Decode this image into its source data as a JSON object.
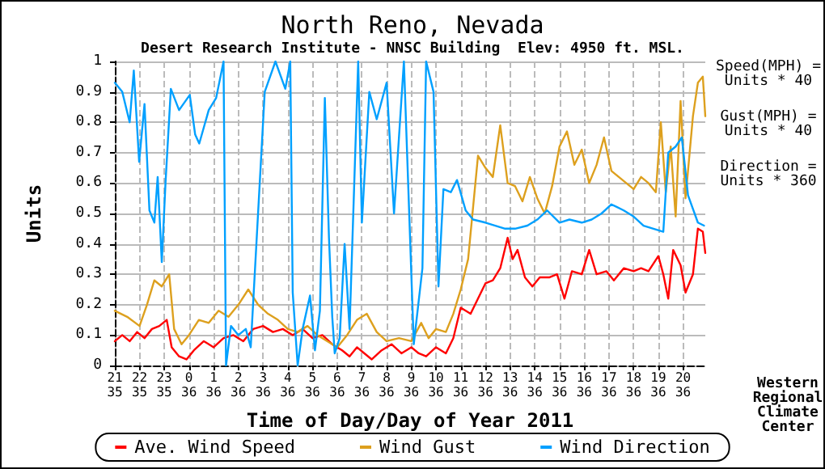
{
  "chart_data": {
    "type": "line",
    "title": "North Reno, Nevada",
    "subtitle": "Desert Research Institute - NNSC Building  Elev: 4950 ft. MSL.",
    "xlabel": "Time of Day/Day of Year 2011",
    "ylabel": "Units",
    "annotations": [
      "Speed(MPH) =\nUnits * 40",
      "Gust(MPH) =\nUnits * 40",
      "Direction =\nUnits * 360",
      "Western\nRegional\nClimate\nCenter"
    ],
    "xlim": [
      "2011-02-04T21:00",
      "2011-02-05T20:54"
    ],
    "xticks": [
      {
        "value": "2011-02-04T21:00",
        "label": "21\n35"
      },
      {
        "value": "2011-02-04T22:00",
        "label": "22\n35"
      },
      {
        "value": "2011-02-04T23:00",
        "label": "23\n35"
      },
      {
        "value": "2011-02-05T00:00",
        "label": "0\n36"
      },
      {
        "value": "2011-02-05T01:00",
        "label": "1\n36"
      },
      {
        "value": "2011-02-05T02:00",
        "label": "2\n36"
      },
      {
        "value": "2011-02-05T03:00",
        "label": "3\n36"
      },
      {
        "value": "2011-02-05T04:00",
        "label": "4\n36"
      },
      {
        "value": "2011-02-05T05:00",
        "label": "5\n36"
      },
      {
        "value": "2011-02-05T06:00",
        "label": "6\n36"
      },
      {
        "value": "2011-02-05T07:00",
        "label": "7\n36"
      },
      {
        "value": "2011-02-05T08:00",
        "label": "8\n36"
      },
      {
        "value": "2011-02-05T09:00",
        "label": "9\n36"
      },
      {
        "value": "2011-02-05T10:00",
        "label": "10\n36"
      },
      {
        "value": "2011-02-05T11:00",
        "label": "11\n36"
      },
      {
        "value": "2011-02-05T12:00",
        "label": "12\n36"
      },
      {
        "value": "2011-02-05T13:00",
        "label": "13\n36"
      },
      {
        "value": "2011-02-05T14:00",
        "label": "14\n36"
      },
      {
        "value": "2011-02-05T15:00",
        "label": "15\n36"
      },
      {
        "value": "2011-02-05T16:00",
        "label": "16\n36"
      },
      {
        "value": "2011-02-05T17:00",
        "label": "17\n36"
      },
      {
        "value": "2011-02-05T18:00",
        "label": "18\n36"
      },
      {
        "value": "2011-02-05T19:00",
        "label": "19\n36"
      },
      {
        "value": "2011-02-05T20:00",
        "label": "20\n36"
      }
    ],
    "ylim": [
      0,
      1
    ],
    "yticks": [
      0,
      0.1,
      0.2,
      0.3,
      0.4,
      0.5,
      0.6,
      0.7,
      0.8,
      0.9,
      1
    ],
    "grid": true,
    "legend": "bottom",
    "marker": "none",
    "line_style": "solid",
    "series": [
      {
        "name": "Ave. Wind Speed",
        "color": "#ff0000",
        "x": [
          "2011-02-04T21:00",
          "2011-02-04T21:18",
          "2011-02-04T21:36",
          "2011-02-04T21:54",
          "2011-02-04T22:12",
          "2011-02-04T22:30",
          "2011-02-04T22:48",
          "2011-02-04T23:06",
          "2011-02-04T23:18",
          "2011-02-04T23:36",
          "2011-02-04T23:54",
          "2011-02-05T00:12",
          "2011-02-05T00:36",
          "2011-02-05T01:00",
          "2011-02-05T01:24",
          "2011-02-05T01:48",
          "2011-02-05T02:12",
          "2011-02-05T02:36",
          "2011-02-05T03:00",
          "2011-02-05T03:24",
          "2011-02-05T03:48",
          "2011-02-05T04:12",
          "2011-02-05T04:36",
          "2011-02-05T05:00",
          "2011-02-05T05:24",
          "2011-02-05T05:48",
          "2011-02-05T06:12",
          "2011-02-05T06:30",
          "2011-02-05T06:48",
          "2011-02-05T07:06",
          "2011-02-05T07:24",
          "2011-02-05T07:48",
          "2011-02-05T08:12",
          "2011-02-05T08:36",
          "2011-02-05T09:00",
          "2011-02-05T09:18",
          "2011-02-05T09:36",
          "2011-02-05T10:00",
          "2011-02-05T10:24",
          "2011-02-05T10:42",
          "2011-02-05T11:00",
          "2011-02-05T11:24",
          "2011-02-05T11:42",
          "2011-02-05T12:00",
          "2011-02-05T12:18",
          "2011-02-05T12:36",
          "2011-02-05T12:54",
          "2011-02-05T13:06",
          "2011-02-05T13:18",
          "2011-02-05T13:36",
          "2011-02-05T13:54",
          "2011-02-05T14:12",
          "2011-02-05T14:36",
          "2011-02-05T14:54",
          "2011-02-05T15:12",
          "2011-02-05T15:30",
          "2011-02-05T15:54",
          "2011-02-05T16:12",
          "2011-02-05T16:30",
          "2011-02-05T16:54",
          "2011-02-05T17:12",
          "2011-02-05T17:36",
          "2011-02-05T18:00",
          "2011-02-05T18:18",
          "2011-02-05T18:36",
          "2011-02-05T19:00",
          "2011-02-05T19:12",
          "2011-02-05T19:24",
          "2011-02-05T19:36",
          "2011-02-05T19:54",
          "2011-02-05T20:06",
          "2011-02-05T20:24",
          "2011-02-05T20:36",
          "2011-02-05T20:48",
          "2011-02-05T20:54"
        ],
        "values": [
          0.08,
          0.1,
          0.08,
          0.11,
          0.09,
          0.12,
          0.13,
          0.15,
          0.06,
          0.03,
          0.02,
          0.05,
          0.08,
          0.06,
          0.09,
          0.1,
          0.08,
          0.12,
          0.13,
          0.11,
          0.12,
          0.1,
          0.12,
          0.09,
          0.1,
          0.07,
          0.05,
          0.03,
          0.06,
          0.04,
          0.02,
          0.05,
          0.07,
          0.04,
          0.06,
          0.04,
          0.03,
          0.06,
          0.04,
          0.09,
          0.19,
          0.17,
          0.22,
          0.27,
          0.28,
          0.32,
          0.42,
          0.35,
          0.38,
          0.29,
          0.26,
          0.29,
          0.29,
          0.3,
          0.22,
          0.31,
          0.3,
          0.38,
          0.3,
          0.31,
          0.28,
          0.32,
          0.31,
          0.32,
          0.31,
          0.36,
          0.3,
          0.22,
          0.38,
          0.33,
          0.24,
          0.3,
          0.45,
          0.44,
          0.37
        ]
      },
      {
        "name": "Wind Gust",
        "color": "#dda01e",
        "x": [
          "2011-02-04T21:00",
          "2011-02-04T21:30",
          "2011-02-04T22:00",
          "2011-02-04T22:18",
          "2011-02-04T22:36",
          "2011-02-04T22:54",
          "2011-02-04T23:12",
          "2011-02-04T23:24",
          "2011-02-04T23:42",
          "2011-02-05T00:00",
          "2011-02-05T00:24",
          "2011-02-05T00:48",
          "2011-02-05T01:12",
          "2011-02-05T01:36",
          "2011-02-05T02:00",
          "2011-02-05T02:24",
          "2011-02-05T02:48",
          "2011-02-05T03:12",
          "2011-02-05T03:36",
          "2011-02-05T04:00",
          "2011-02-05T04:24",
          "2011-02-05T04:48",
          "2011-02-05T05:12",
          "2011-02-05T05:36",
          "2011-02-05T06:00",
          "2011-02-05T06:24",
          "2011-02-05T06:48",
          "2011-02-05T07:12",
          "2011-02-05T07:36",
          "2011-02-05T08:00",
          "2011-02-05T08:30",
          "2011-02-05T09:00",
          "2011-02-05T09:24",
          "2011-02-05T09:42",
          "2011-02-05T10:00",
          "2011-02-05T10:24",
          "2011-02-05T10:42",
          "2011-02-05T11:00",
          "2011-02-05T11:18",
          "2011-02-05T11:42",
          "2011-02-05T12:00",
          "2011-02-05T12:18",
          "2011-02-05T12:36",
          "2011-02-05T12:54",
          "2011-02-05T13:12",
          "2011-02-05T13:30",
          "2011-02-05T13:48",
          "2011-02-05T14:06",
          "2011-02-05T14:24",
          "2011-02-05T14:42",
          "2011-02-05T15:00",
          "2011-02-05T15:18",
          "2011-02-05T15:36",
          "2011-02-05T15:54",
          "2011-02-05T16:12",
          "2011-02-05T16:30",
          "2011-02-05T16:48",
          "2011-02-05T17:06",
          "2011-02-05T17:24",
          "2011-02-05T17:42",
          "2011-02-05T18:00",
          "2011-02-05T18:18",
          "2011-02-05T18:36",
          "2011-02-05T18:54",
          "2011-02-05T19:06",
          "2011-02-05T19:18",
          "2011-02-05T19:30",
          "2011-02-05T19:42",
          "2011-02-05T19:54",
          "2011-02-05T20:06",
          "2011-02-05T20:24",
          "2011-02-05T20:36",
          "2011-02-05T20:48",
          "2011-02-05T20:54"
        ],
        "values": [
          0.18,
          0.16,
          0.13,
          0.2,
          0.28,
          0.26,
          0.3,
          0.12,
          0.07,
          0.1,
          0.15,
          0.14,
          0.18,
          0.16,
          0.2,
          0.25,
          0.2,
          0.17,
          0.15,
          0.12,
          0.11,
          0.13,
          0.1,
          0.08,
          0.06,
          0.1,
          0.15,
          0.17,
          0.11,
          0.08,
          0.09,
          0.08,
          0.14,
          0.09,
          0.12,
          0.11,
          0.17,
          0.25,
          0.35,
          0.69,
          0.65,
          0.62,
          0.79,
          0.6,
          0.59,
          0.54,
          0.62,
          0.55,
          0.5,
          0.59,
          0.72,
          0.77,
          0.66,
          0.71,
          0.6,
          0.66,
          0.75,
          0.64,
          0.62,
          0.6,
          0.58,
          0.62,
          0.6,
          0.57,
          0.8,
          0.57,
          0.72,
          0.49,
          0.87,
          0.55,
          0.82,
          0.93,
          0.95,
          0.82
        ]
      },
      {
        "name": "Wind Direction",
        "color": "#00a0ff",
        "x": [
          "2011-02-04T21:00",
          "2011-02-04T21:18",
          "2011-02-04T21:36",
          "2011-02-04T21:46",
          "2011-02-04T21:59",
          "2011-02-04T22:12",
          "2011-02-04T22:24",
          "2011-02-04T22:36",
          "2011-02-04T22:44",
          "2011-02-04T22:54",
          "2011-02-04T23:03",
          "2011-02-04T23:16",
          "2011-02-04T23:36",
          "2011-02-05T00:02",
          "2011-02-05T00:15",
          "2011-02-05T00:25",
          "2011-02-05T00:48",
          "2011-02-05T01:06",
          "2011-02-05T01:24",
          "2011-02-05T01:30",
          "2011-02-05T01:42",
          "2011-02-05T02:00",
          "2011-02-05T02:18",
          "2011-02-05T02:30",
          "2011-02-05T03:04",
          "2011-02-05T03:30",
          "2011-02-05T03:54",
          "2011-02-05T04:06",
          "2011-02-05T04:12",
          "2011-02-05T04:24",
          "2011-02-05T04:36",
          "2011-02-05T04:54",
          "2011-02-05T05:06",
          "2011-02-05T05:18",
          "2011-02-05T05:30",
          "2011-02-05T05:40",
          "2011-02-05T05:48",
          "2011-02-05T05:54",
          "2011-02-05T06:06",
          "2011-02-05T06:18",
          "2011-02-05T06:30",
          "2011-02-05T06:51",
          "2011-02-05T07:00",
          "2011-02-05T07:18",
          "2011-02-05T07:36",
          "2011-02-05T08:00",
          "2011-02-05T08:18",
          "2011-02-05T08:42",
          "2011-02-05T09:06",
          "2011-02-05T09:27",
          "2011-02-05T09:36",
          "2011-02-05T09:54",
          "2011-02-05T10:06",
          "2011-02-05T10:18",
          "2011-02-05T10:36",
          "2011-02-05T10:51",
          "2011-02-05T11:12",
          "2011-02-05T11:30",
          "2011-02-05T12:00",
          "2011-02-05T12:24",
          "2011-02-05T12:48",
          "2011-02-05T13:12",
          "2011-02-05T13:42",
          "2011-02-05T14:06",
          "2011-02-05T14:30",
          "2011-02-05T15:00",
          "2011-02-05T15:24",
          "2011-02-05T15:54",
          "2011-02-05T16:18",
          "2011-02-05T16:42",
          "2011-02-05T17:06",
          "2011-02-05T17:36",
          "2011-02-05T18:00",
          "2011-02-05T18:24",
          "2011-02-05T18:48",
          "2011-02-05T19:12",
          "2011-02-05T19:24",
          "2011-02-05T19:42",
          "2011-02-05T19:57",
          "2011-02-05T20:12",
          "2011-02-05T20:36",
          "2011-02-05T20:51"
        ],
        "values": [
          0.93,
          0.9,
          0.8,
          0.97,
          0.67,
          0.86,
          0.51,
          0.47,
          0.62,
          0.34,
          0.6,
          0.91,
          0.84,
          0.89,
          0.76,
          0.73,
          0.84,
          0.88,
          1.0,
          0.0,
          0.13,
          0.1,
          0.12,
          0.06,
          0.9,
          1.0,
          0.91,
          1.0,
          0.24,
          0.0,
          0.12,
          0.23,
          0.05,
          0.18,
          0.88,
          0.42,
          0.16,
          0.04,
          0.09,
          0.4,
          0.12,
          1.0,
          0.47,
          0.9,
          0.81,
          0.93,
          0.5,
          1.0,
          0.07,
          0.32,
          1.0,
          0.9,
          0.26,
          0.58,
          0.57,
          0.61,
          0.51,
          0.48,
          0.47,
          0.46,
          0.45,
          0.45,
          0.46,
          0.48,
          0.51,
          0.47,
          0.48,
          0.47,
          0.48,
          0.5,
          0.53,
          0.51,
          0.49,
          0.46,
          0.45,
          0.44,
          0.7,
          0.72,
          0.75,
          0.56,
          0.47,
          0.46
        ]
      }
    ]
  }
}
